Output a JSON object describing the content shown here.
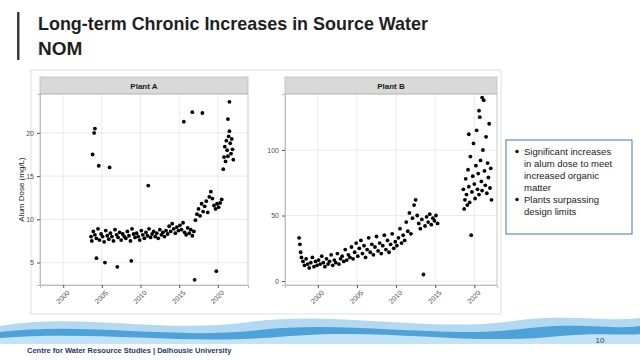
{
  "slide": {
    "title_lines": [
      "Long-term Chronic Increases in Source Water",
      "NOM"
    ],
    "bullets": [
      [
        "Significant increases",
        "in alum dose to meet",
        "increased organic",
        "matter"
      ],
      [
        "Plants surpassing",
        "design limits"
      ]
    ],
    "footer": "Centre for Water Resource Studies | Dalhousie University",
    "page_number": "10"
  },
  "chart_data": [
    {
      "type": "scatter",
      "title": "Plant A",
      "ylabel": "Alum Dose (mg/L)",
      "color": "#000000",
      "grid": true,
      "xlim": [
        1997.0,
        2023.9
      ],
      "ylim": [
        2.4,
        24.5
      ],
      "xticks": [
        2000,
        2005,
        2010,
        2015,
        2020
      ],
      "yticks": [
        5,
        10,
        15,
        20
      ],
      "x": [
        2003.6,
        2003.7,
        2003.9,
        2004.1,
        2004.3,
        2004.5,
        2004.7,
        2004.9,
        2005.1,
        2005.3,
        2005.5,
        2005.7,
        2005.9,
        2006.1,
        2006.3,
        2006.5,
        2006.7,
        2006.9,
        2007.1,
        2007.3,
        2007.5,
        2007.7,
        2007.9,
        2008.1,
        2008.3,
        2008.5,
        2008.7,
        2008.9,
        2009.1,
        2009.3,
        2009.5,
        2009.7,
        2009.9,
        2010.1,
        2010.3,
        2010.5,
        2010.7,
        2010.9,
        2011.1,
        2011.3,
        2011.5,
        2011.7,
        2011.9,
        2012.1,
        2012.3,
        2012.5,
        2012.7,
        2012.9,
        2013.1,
        2013.3,
        2013.5,
        2013.7,
        2013.9,
        2014.1,
        2014.3,
        2014.5,
        2014.7,
        2014.9,
        2015.1,
        2015.3,
        2015.5,
        2015.7,
        2015.9,
        2016.1,
        2016.3,
        2016.5,
        2016.7,
        2016.9,
        2017.1,
        2017.3,
        2017.5,
        2017.7,
        2017.9,
        2018.1,
        2018.3,
        2018.5,
        2018.7,
        2018.9,
        2019.1,
        2019.3,
        2019.5,
        2019.7,
        2019.9,
        2020.1,
        2020.3,
        2020.5,
        2020.7,
        2020.8,
        2020.9,
        2021.0,
        2021.1,
        2021.2,
        2021.3,
        2021.4,
        2021.5,
        2021.6,
        2021.7,
        2021.8,
        2021.9,
        2022.0,
        2003.8,
        2004.0,
        2004.1,
        2004.6,
        2006.0,
        2011.0,
        2015.6,
        2016.7,
        2018.0,
        2021.5,
        2004.3,
        2005.4,
        2007.0,
        2008.8,
        2017.0,
        2019.8,
        2021.3
      ],
      "values": [
        8.0,
        7.5,
        8.6,
        8.2,
        7.8,
        8.9,
        7.6,
        8.3,
        8.0,
        7.4,
        8.7,
        8.1,
        7.7,
        8.4,
        8.0,
        7.5,
        8.8,
        8.2,
        7.9,
        8.5,
        7.6,
        8.3,
        8.0,
        7.8,
        8.6,
        8.1,
        7.5,
        8.9,
        8.3,
        7.9,
        8.4,
        8.0,
        7.6,
        8.7,
        8.2,
        7.8,
        8.5,
        8.1,
        8.9,
        7.9,
        8.3,
        8.6,
        8.0,
        8.4,
        7.8,
        8.8,
        8.2,
        8.5,
        8.0,
        8.7,
        8.3,
        9.2,
        8.6,
        9.5,
        8.9,
        8.4,
        9.1,
        8.7,
        9.3,
        8.8,
        9.6,
        8.5,
        8.2,
        9.0,
        8.4,
        8.8,
        8.1,
        8.6,
        9.9,
        10.6,
        11.2,
        10.4,
        11.8,
        10.9,
        11.5,
        12.1,
        10.8,
        12.6,
        13.2,
        12.4,
        11.6,
        11.2,
        11.8,
        11.4,
        11.9,
        12.3,
        15.8,
        17.2,
        18.4,
        16.7,
        19.1,
        18.0,
        17.3,
        19.6,
        20.2,
        18.8,
        17.6,
        19.3,
        18.1,
        16.9,
        17.5,
        20.0,
        20.5,
        16.2,
        16.0,
        13.9,
        21.3,
        22.4,
        22.3,
        23.6,
        5.5,
        5.0,
        4.5,
        5.2,
        3.0,
        4.0,
        21.6
      ]
    },
    {
      "type": "scatter",
      "title": "Plant B",
      "color": "#000000",
      "grid": true,
      "xlim": [
        1995.8,
        2022.9
      ],
      "ylim": [
        -3,
        142.7
      ],
      "xticks": [
        2000,
        2005,
        2010,
        2015,
        2020
      ],
      "yticks": [
        0,
        50,
        100
      ],
      "x": [
        1997.6,
        1997.7,
        1997.8,
        1997.9,
        1998.1,
        1998.3,
        1998.5,
        1998.7,
        1998.9,
        1999.1,
        1999.3,
        1999.5,
        1999.7,
        1999.9,
        2000.1,
        2000.3,
        2000.5,
        2000.7,
        2000.9,
        2001.1,
        2001.3,
        2001.5,
        2001.7,
        2001.9,
        2002.1,
        2002.3,
        2002.5,
        2002.7,
        2002.9,
        2003.1,
        2003.3,
        2003.5,
        2003.7,
        2003.9,
        2004.1,
        2004.3,
        2004.5,
        2004.7,
        2004.9,
        2005.1,
        2005.3,
        2005.5,
        2005.7,
        2005.9,
        2006.1,
        2006.3,
        2006.5,
        2006.7,
        2006.9,
        2007.1,
        2007.3,
        2007.5,
        2007.7,
        2007.9,
        2008.1,
        2008.3,
        2008.5,
        2008.7,
        2008.9,
        2009.1,
        2009.3,
        2009.5,
        2009.7,
        2009.9,
        2010.1,
        2010.3,
        2010.5,
        2010.7,
        2010.9,
        2011.1,
        2011.3,
        2011.5,
        2011.7,
        2011.9,
        2012.1,
        2012.3,
        2012.5,
        2012.7,
        2012.9,
        2013.1,
        2013.3,
        2013.5,
        2013.7,
        2013.9,
        2014.1,
        2014.3,
        2014.5,
        2014.7,
        2014.9,
        2015.1,
        2015.3,
        2018.6,
        2018.7,
        2018.8,
        2018.9,
        2019.0,
        2019.1,
        2019.2,
        2019.3,
        2019.4,
        2019.5,
        2019.6,
        2019.7,
        2019.8,
        2019.9,
        2020.0,
        2020.1,
        2020.2,
        2020.3,
        2020.4,
        2020.5,
        2020.6,
        2020.7,
        2020.8,
        2020.9,
        2021.0,
        2021.1,
        2021.2,
        2021.3,
        2021.4,
        2021.5,
        2021.6,
        2021.7,
        2021.8,
        2021.9,
        2022.0,
        2022.1,
        2022.2,
        2019.3,
        2020.6,
        2021.0
      ],
      "values": [
        33,
        28,
        22,
        18,
        15,
        12,
        17,
        13,
        10,
        14,
        18,
        11,
        15,
        12,
        16,
        13,
        19,
        14,
        11,
        17,
        13,
        15,
        20,
        12,
        16,
        14,
        21,
        13,
        17,
        19,
        15,
        24,
        16,
        20,
        18,
        26,
        17,
        22,
        29,
        19,
        25,
        31,
        21,
        27,
        18,
        24,
        33,
        22,
        28,
        20,
        26,
        34,
        23,
        29,
        21,
        27,
        35,
        24,
        31,
        22,
        28,
        36,
        25,
        30,
        27,
        33,
        40,
        29,
        35,
        31,
        45,
        38,
        52,
        36,
        48,
        58,
        62,
        50,
        44,
        40,
        47,
        5,
        42,
        49,
        45,
        51,
        43,
        48,
        46,
        50,
        44,
        70,
        55,
        62,
        78,
        66,
        58,
        85,
        72,
        60,
        95,
        35,
        68,
        80,
        105,
        74,
        63,
        88,
        115,
        70,
        82,
        66,
        125,
        92,
        76,
        69,
        100,
        138,
        84,
        73,
        110,
        67,
        90,
        79,
        120,
        71,
        86,
        62,
        112,
        130,
        140
      ]
    }
  ]
}
